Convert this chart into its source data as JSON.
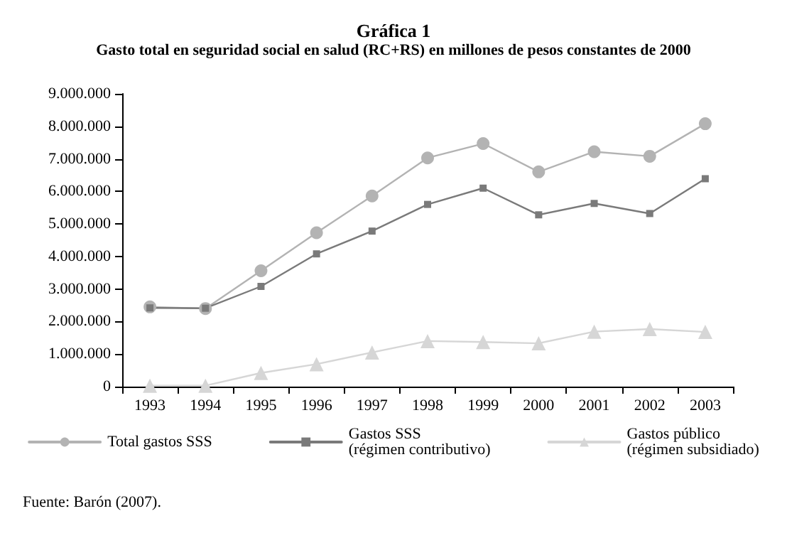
{
  "chart_data": {
    "type": "line",
    "title": "Gráfica 1",
    "subtitle": "Gasto total en seguridad social en salud (RC+RS) en millones de pesos constantes de 2000",
    "categories": [
      "1993",
      "1994",
      "1995",
      "1996",
      "1997",
      "1998",
      "1999",
      "2000",
      "2001",
      "2002",
      "2003"
    ],
    "series": [
      {
        "name": "Total gastos SSS",
        "color": "#b3b3b3",
        "marker": "circle",
        "values": [
          2450000,
          2400000,
          3560000,
          4730000,
          5860000,
          7030000,
          7470000,
          6600000,
          7220000,
          7080000,
          8080000
        ]
      },
      {
        "name": "Gastos SSS\n(régimen contributivo)",
        "color": "#7a7a7a",
        "marker": "square",
        "values": [
          2420000,
          2410000,
          3080000,
          4080000,
          4780000,
          5600000,
          6100000,
          5280000,
          5630000,
          5320000,
          6390000
        ]
      },
      {
        "name": "Gastos público\n(régimen subsidiado)",
        "color": "#d6d6d6",
        "marker": "triangle",
        "values": [
          30000,
          30000,
          420000,
          690000,
          1050000,
          1400000,
          1370000,
          1330000,
          1690000,
          1770000,
          1680000
        ]
      }
    ],
    "ylim": [
      0,
      9000000
    ],
    "yticks": [
      {
        "value": 0,
        "label": "0"
      },
      {
        "value": 1000000,
        "label": "1.000.000"
      },
      {
        "value": 2000000,
        "label": "2.000.000"
      },
      {
        "value": 3000000,
        "label": "3.000.000"
      },
      {
        "value": 4000000,
        "label": "4.000.000"
      },
      {
        "value": 5000000,
        "label": "5.000.000"
      },
      {
        "value": 6000000,
        "label": "6.000.000"
      },
      {
        "value": 7000000,
        "label": "7.000.000"
      },
      {
        "value": 8000000,
        "label": "8.000.000"
      },
      {
        "value": 9000000,
        "label": "9.000.000"
      }
    ],
    "grid": false,
    "legend": "bottom",
    "line_style": "solid",
    "annotations": [
      "Fuente: Barón (2007)."
    ]
  }
}
